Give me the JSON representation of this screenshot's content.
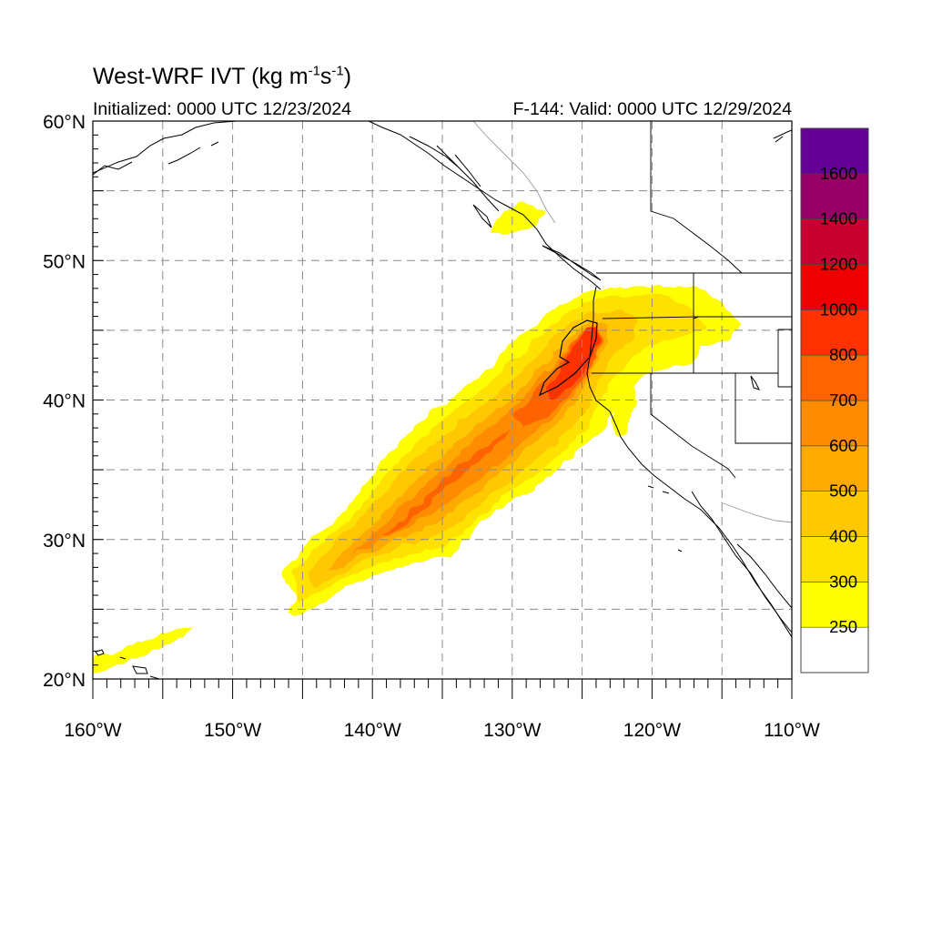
{
  "title": {
    "main": "West-WRF IVT (kg m",
    "sup1": "-1",
    "mid": "s",
    "sup2": "-1",
    "end": ")"
  },
  "subtitle_left": "Initialized: 0000 UTC 12/23/2024",
  "subtitle_right": "F-144: Valid: 0000 UTC 12/29/2024",
  "map": {
    "lon_range": [
      -160,
      -110
    ],
    "lat_range": [
      20,
      60
    ],
    "lon_ticks": [
      {
        "lon": -160,
        "label": "160°W"
      },
      {
        "lon": -150,
        "label": "150°W"
      },
      {
        "lon": -140,
        "label": "140°W"
      },
      {
        "lon": -130,
        "label": "130°W"
      },
      {
        "lon": -120,
        "label": "120°W"
      },
      {
        "lon": -110,
        "label": "110°W"
      }
    ],
    "lat_ticks": [
      {
        "lat": 20,
        "label": "20°N"
      },
      {
        "lat": 30,
        "label": "30°N"
      },
      {
        "lat": 40,
        "label": "40°N"
      },
      {
        "lat": 50,
        "label": "50°N"
      },
      {
        "lat": 60,
        "label": "60°N"
      }
    ],
    "grid_lon_step": 5,
    "grid_lat_step": 5,
    "grid": true
  },
  "colorbar": {
    "levels": [
      "250",
      "300",
      "400",
      "500",
      "600",
      "700",
      "800",
      "1000",
      "1200",
      "1400",
      "1600"
    ],
    "colors": [
      "#ffffff",
      "#ffff00",
      "#ffe100",
      "#ffc800",
      "#ffaa00",
      "#ff8c00",
      "#ff6400",
      "#ff3200",
      "#ee0000",
      "#c80032",
      "#960064",
      "#640096"
    ]
  },
  "ivt_field": {
    "description_levels": [
      250,
      300,
      400,
      500,
      600,
      700,
      800,
      1000
    ],
    "plume_axis": [
      [
        -138,
        30
      ],
      [
        -126,
        42
      ],
      [
        -124.8,
        45.5
      ]
    ],
    "max_contour_level": 1000
  }
}
